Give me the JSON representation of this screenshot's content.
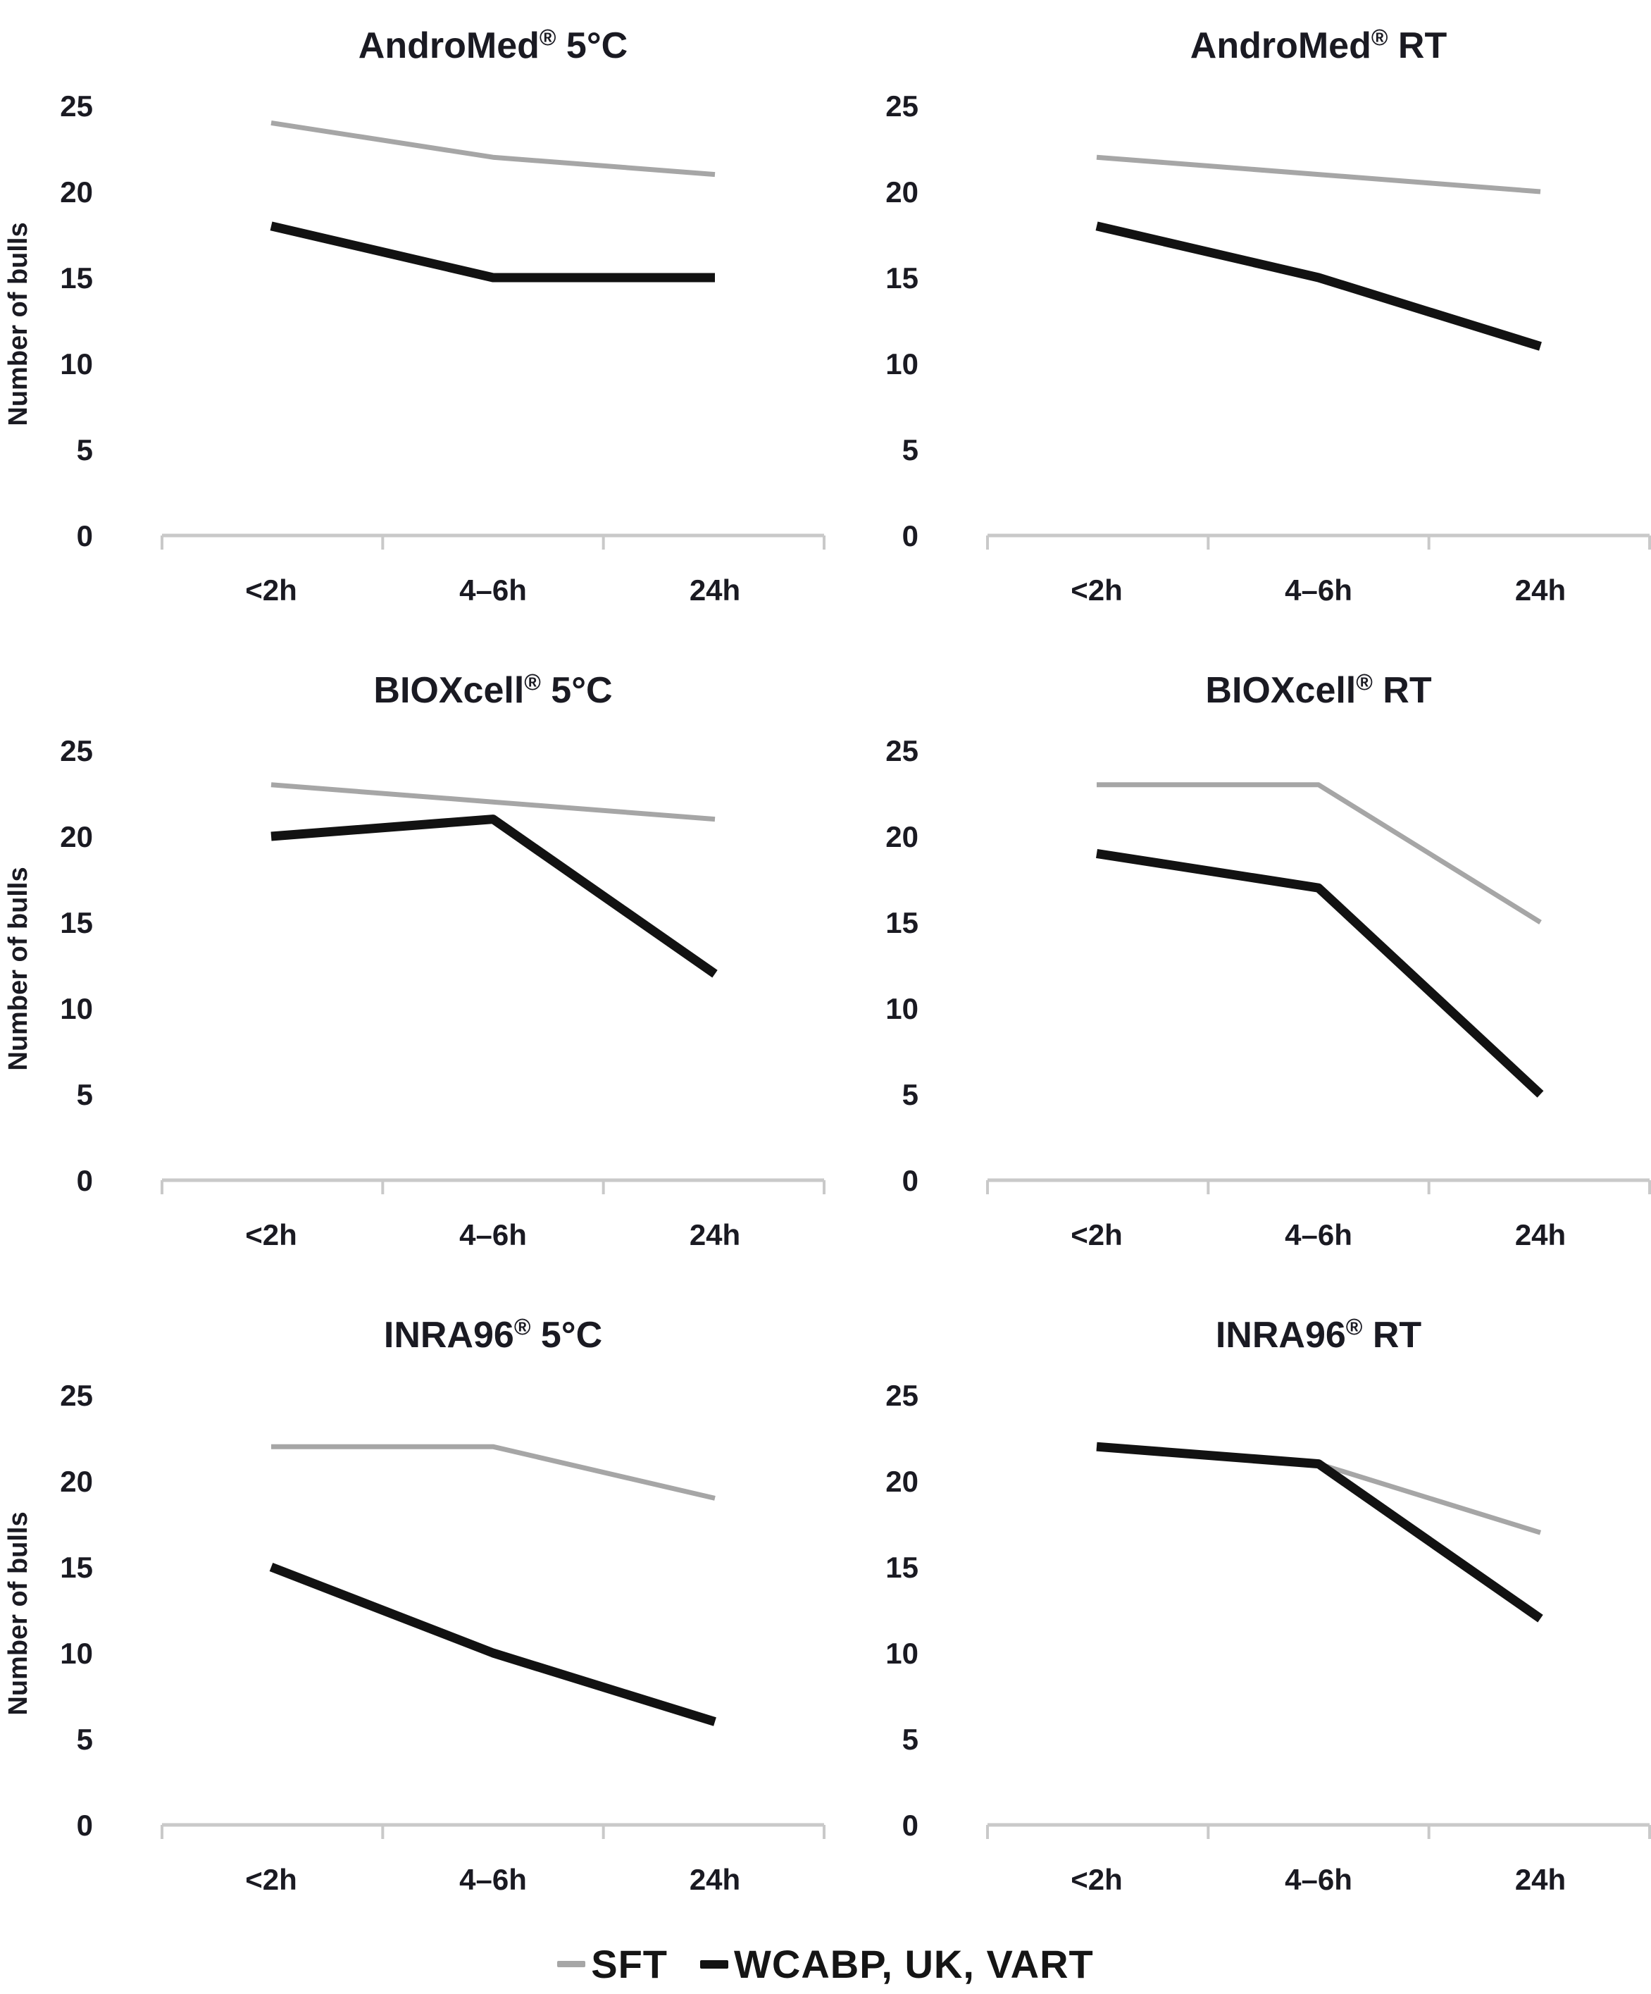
{
  "figure": {
    "ylabel": "Number of bulls",
    "categories": [
      "<2h",
      "4–6h",
      "24h"
    ],
    "colors": {
      "sft_line": "#a6a6a6",
      "wcabp_line": "#121212",
      "axis": "#c9c9c9",
      "text": "#1a1a22"
    }
  },
  "legend": {
    "items": [
      {
        "label": "SFT",
        "color": "#a6a6a6",
        "thickness": "thin"
      },
      {
        "label": "WCABP, UK, VART",
        "color": "#121212",
        "thickness": "thick"
      }
    ]
  },
  "chart_data": [
    {
      "type": "line",
      "title": "AndroMed® 5°C",
      "categories": [
        "<2h",
        "4–6h",
        "24h"
      ],
      "xlabel": "",
      "ylabel": "Number of bulls",
      "ylim": [
        0,
        25
      ],
      "yticks": [
        0,
        5,
        10,
        15,
        20,
        25
      ],
      "grid": false,
      "legend_position": "shared-bottom",
      "series": [
        {
          "name": "SFT",
          "color": "#a6a6a6",
          "values": [
            24,
            22,
            21
          ]
        },
        {
          "name": "WCABP, UK, VART",
          "color": "#121212",
          "values": [
            18,
            15,
            15
          ]
        }
      ]
    },
    {
      "type": "line",
      "title": "AndroMed® RT",
      "categories": [
        "<2h",
        "4–6h",
        "24h"
      ],
      "xlabel": "",
      "ylabel": "",
      "ylim": [
        0,
        25
      ],
      "yticks": [
        0,
        5,
        10,
        15,
        20,
        25
      ],
      "grid": false,
      "legend_position": "shared-bottom",
      "series": [
        {
          "name": "SFT",
          "color": "#a6a6a6",
          "values": [
            22,
            21,
            20
          ]
        },
        {
          "name": "WCABP, UK, VART",
          "color": "#121212",
          "values": [
            18,
            15,
            11
          ]
        }
      ]
    },
    {
      "type": "line",
      "title": "BIOXcell® 5°C",
      "categories": [
        "<2h",
        "4–6h",
        "24h"
      ],
      "xlabel": "",
      "ylabel": "Number of bulls",
      "ylim": [
        0,
        25
      ],
      "yticks": [
        0,
        5,
        10,
        15,
        20,
        25
      ],
      "grid": false,
      "legend_position": "shared-bottom",
      "series": [
        {
          "name": "SFT",
          "color": "#a6a6a6",
          "values": [
            23,
            22,
            21
          ]
        },
        {
          "name": "WCABP, UK, VART",
          "color": "#121212",
          "values": [
            20,
            21,
            12
          ]
        }
      ]
    },
    {
      "type": "line",
      "title": "BIOXcell® RT",
      "categories": [
        "<2h",
        "4–6h",
        "24h"
      ],
      "xlabel": "",
      "ylabel": "",
      "ylim": [
        0,
        25
      ],
      "yticks": [
        0,
        5,
        10,
        15,
        20,
        25
      ],
      "grid": false,
      "legend_position": "shared-bottom",
      "series": [
        {
          "name": "SFT",
          "color": "#a6a6a6",
          "values": [
            23,
            23,
            15
          ]
        },
        {
          "name": "WCABP, UK, VART",
          "color": "#121212",
          "values": [
            19,
            17,
            5
          ]
        }
      ]
    },
    {
      "type": "line",
      "title": "INRA96® 5°C",
      "categories": [
        "<2h",
        "4–6h",
        "24h"
      ],
      "xlabel": "",
      "ylabel": "Number of bulls",
      "ylim": [
        0,
        25
      ],
      "yticks": [
        0,
        5,
        10,
        15,
        20,
        25
      ],
      "grid": false,
      "legend_position": "shared-bottom",
      "series": [
        {
          "name": "SFT",
          "color": "#a6a6a6",
          "values": [
            22,
            22,
            19
          ]
        },
        {
          "name": "WCABP, UK, VART",
          "color": "#121212",
          "values": [
            15,
            10,
            6
          ]
        }
      ]
    },
    {
      "type": "line",
      "title": "INRA96® RT",
      "categories": [
        "<2h",
        "4–6h",
        "24h"
      ],
      "xlabel": "",
      "ylabel": "",
      "ylim": [
        0,
        25
      ],
      "yticks": [
        0,
        5,
        10,
        15,
        20,
        25
      ],
      "grid": false,
      "legend_position": "shared-bottom",
      "series": [
        {
          "name": "SFT",
          "color": "#a6a6a6",
          "values": [
            22,
            21,
            17
          ]
        },
        {
          "name": "WCABP, UK, VART",
          "color": "#121212",
          "values": [
            22,
            21,
            12
          ]
        }
      ]
    }
  ]
}
